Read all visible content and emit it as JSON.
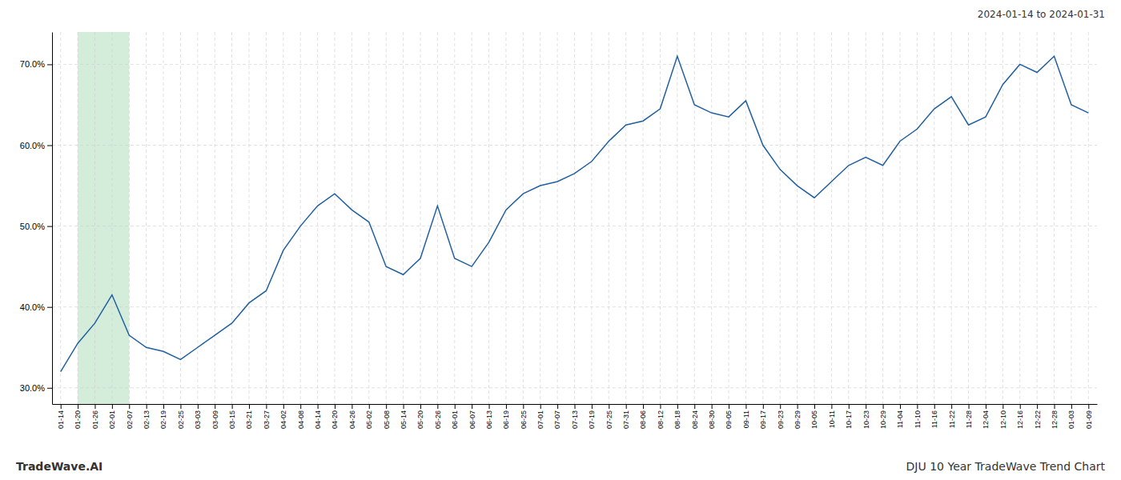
{
  "chart_data": {
    "type": "line",
    "title": "DJU 10 Year TradeWave Trend Chart",
    "subtitle": "2024-01-14 to 2024-01-31",
    "annotations": [
      "TradeWave.AI"
    ],
    "color": "#2060a0",
    "grid": true,
    "line_style": "solid",
    "highlight": {
      "from": "01-20",
      "to": "02-07",
      "color": "#d4edda"
    },
    "categories": [
      "01-14",
      "01-20",
      "01-26",
      "02-01",
      "02-07",
      "02-13",
      "02-19",
      "02-25",
      "03-03",
      "03-09",
      "03-15",
      "03-21",
      "03-27",
      "04-02",
      "04-08",
      "04-14",
      "04-20",
      "04-26",
      "05-02",
      "05-08",
      "05-14",
      "05-20",
      "05-26",
      "06-01",
      "06-07",
      "06-13",
      "06-19",
      "06-25",
      "07-01",
      "07-07",
      "07-13",
      "07-19",
      "07-25",
      "07-31",
      "08-06",
      "08-12",
      "08-18",
      "08-24",
      "08-30",
      "09-05",
      "09-11",
      "09-17",
      "09-23",
      "09-29",
      "10-05",
      "10-11",
      "10-17",
      "10-23",
      "10-29",
      "11-04",
      "11-10",
      "11-16",
      "11-22",
      "11-28",
      "12-04",
      "12-10",
      "12-16",
      "12-22",
      "12-28",
      "01-03",
      "01-09"
    ],
    "values": [
      32.0,
      35.5,
      38.0,
      41.5,
      36.5,
      35.0,
      34.5,
      33.5,
      35.0,
      36.5,
      38.0,
      40.5,
      42.0,
      47.0,
      50.0,
      52.5,
      54.0,
      52.0,
      50.5,
      45.0,
      44.0,
      46.0,
      52.5,
      46.0,
      45.0,
      48.0,
      52.0,
      54.0,
      55.0,
      55.5,
      56.5,
      58.0,
      60.5,
      62.5,
      63.0,
      64.5,
      71.0,
      65.0,
      64.0,
      63.5,
      65.5,
      60.0,
      57.0,
      55.0,
      53.5,
      55.5,
      57.5,
      58.5,
      57.5,
      60.5,
      62.0,
      64.5,
      66.0,
      62.5,
      63.5,
      67.5,
      70.0,
      69.0,
      71.0,
      65.0,
      64.0
    ],
    "ylim": [
      28.0,
      74.0
    ],
    "yticks": [
      {
        "value": 30.0,
        "label": "30.0%"
      },
      {
        "value": 40.0,
        "label": "40.0%"
      },
      {
        "value": 50.0,
        "label": "50.0%"
      },
      {
        "value": 60.0,
        "label": "60.0%"
      },
      {
        "value": 70.0,
        "label": "70.0%"
      }
    ]
  }
}
